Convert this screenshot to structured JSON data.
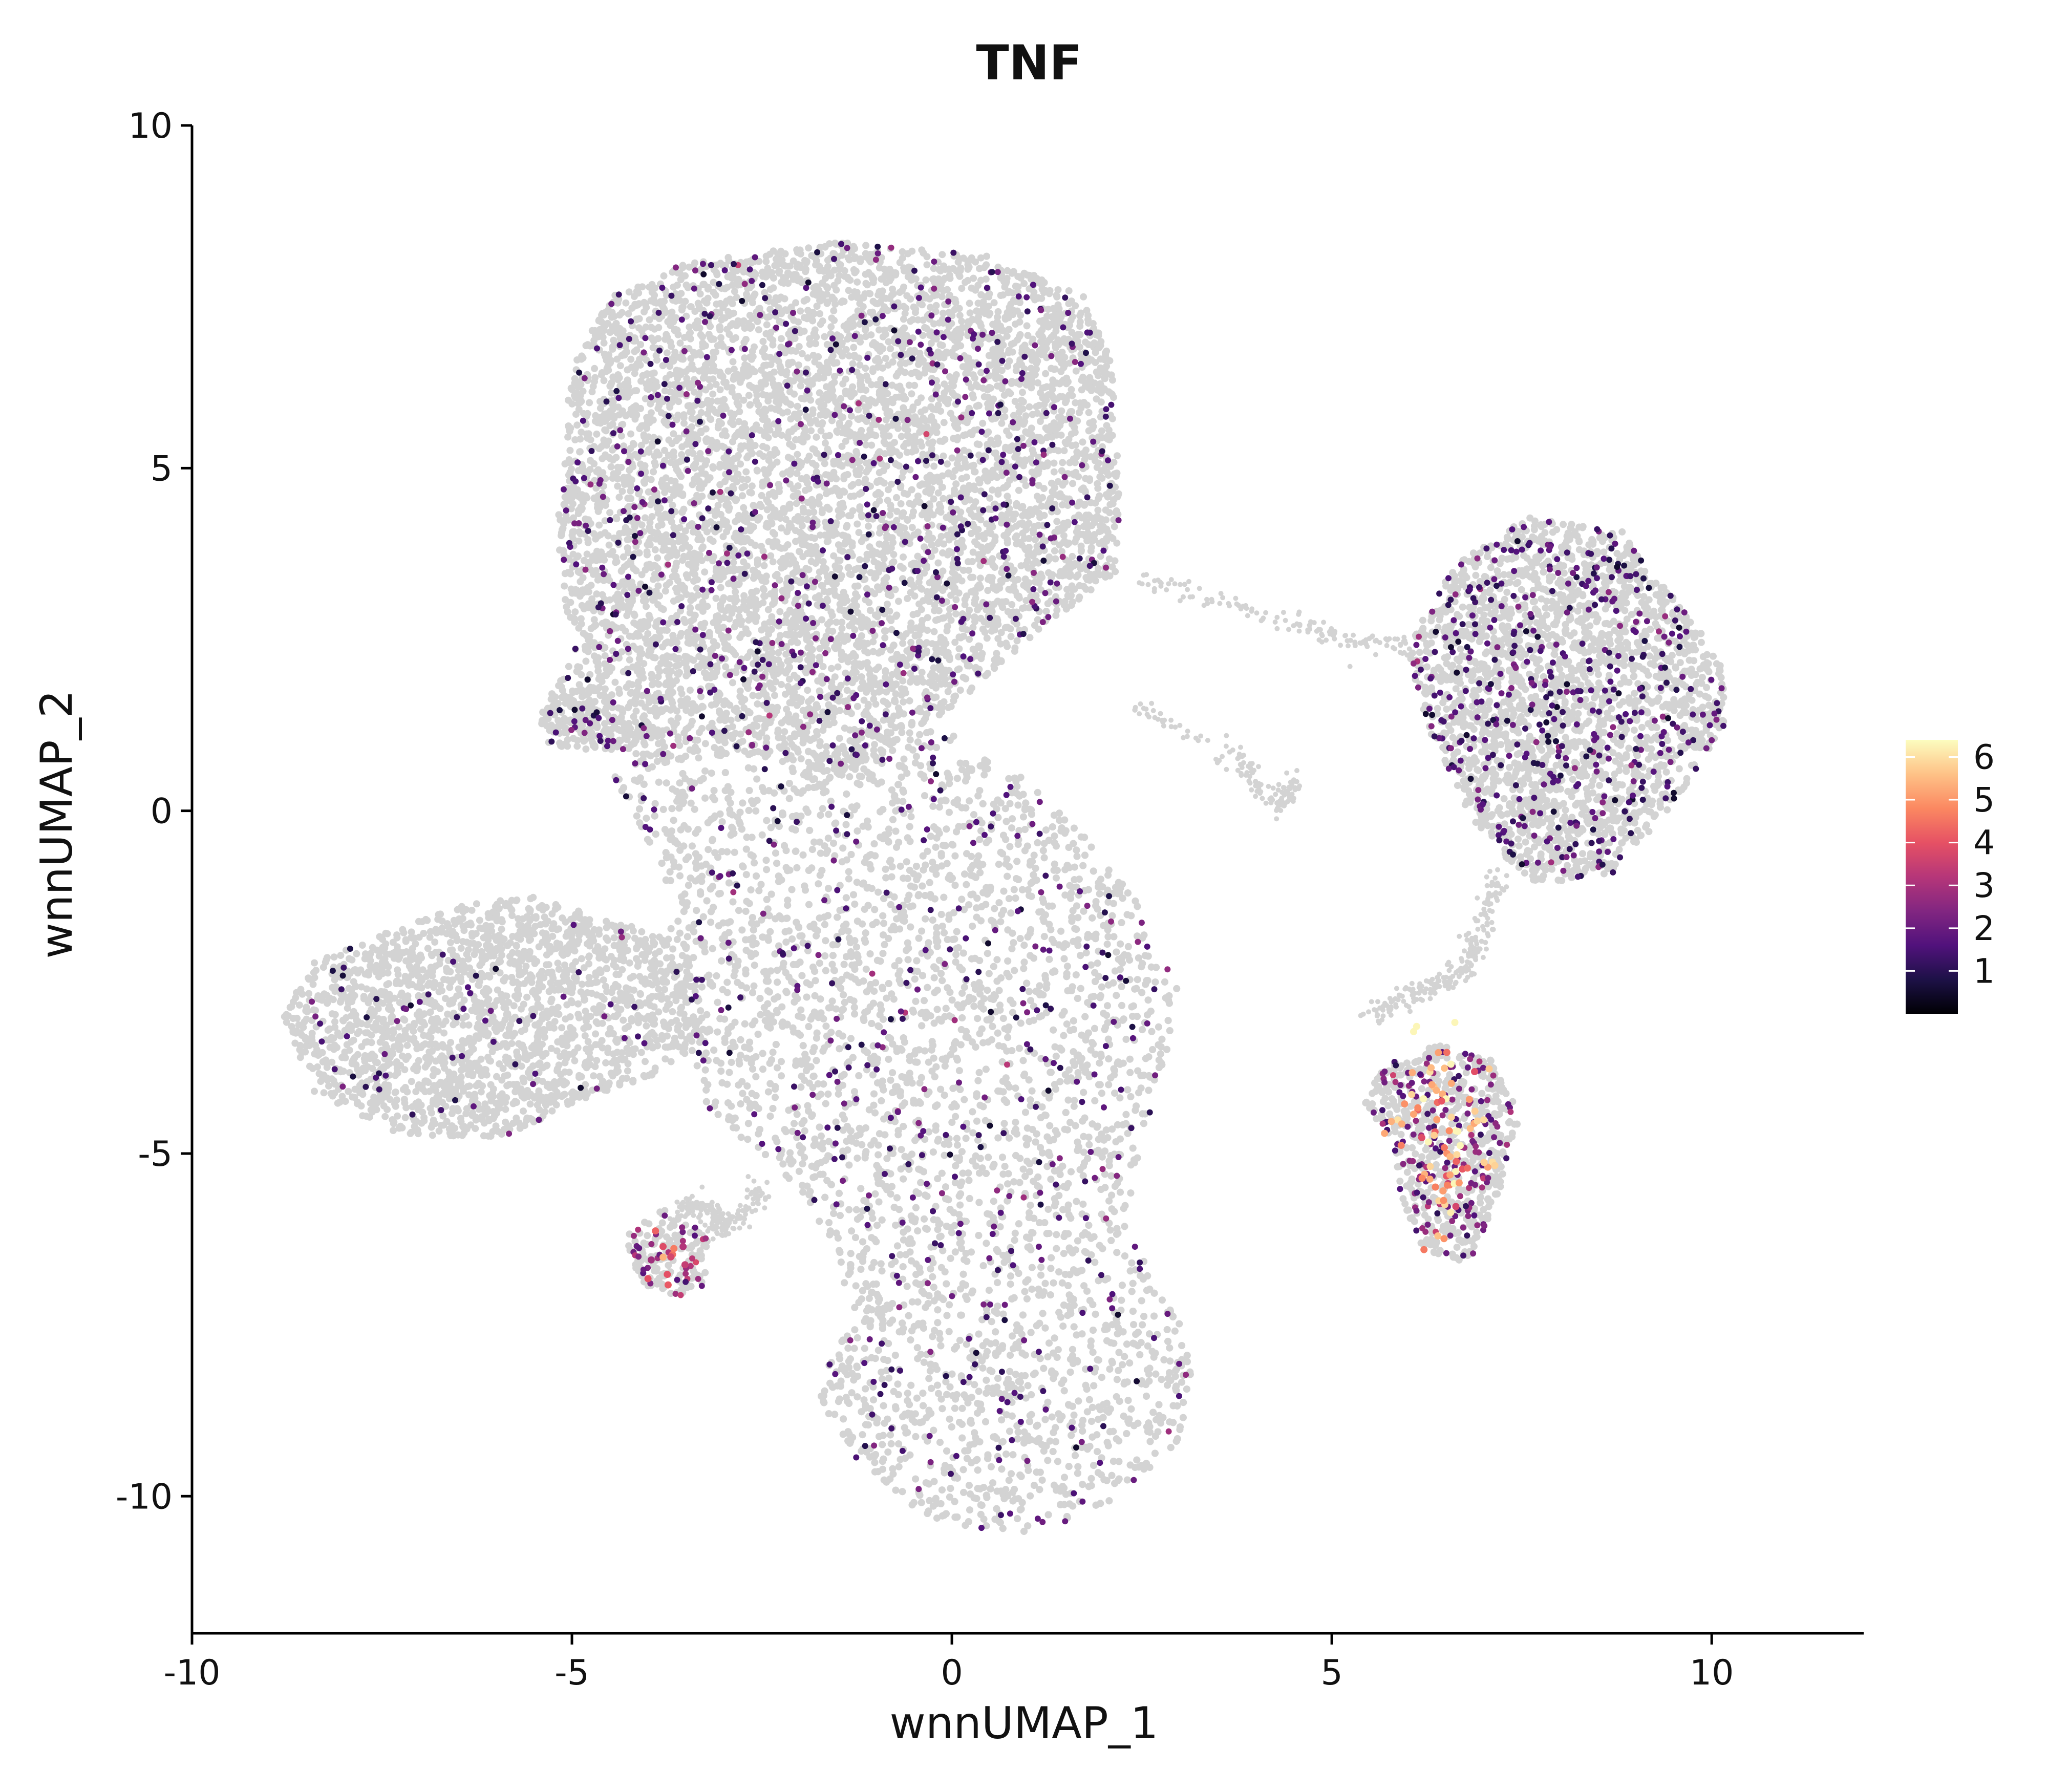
{
  "chart_data": {
    "type": "scatter",
    "title": "TNF",
    "xlabel": "wnnUMAP_1",
    "ylabel": "wnnUMAP_2",
    "xlim": [
      -10,
      12
    ],
    "ylim": [
      -12,
      10
    ],
    "x_ticks": [
      -10,
      -5,
      0,
      5,
      10
    ],
    "y_ticks": [
      10,
      5,
      0,
      -5,
      -10
    ],
    "grid": false,
    "background_color": "#d3d3d3",
    "colorbar": {
      "min": 0,
      "max": 6.4,
      "ticks": [
        1,
        2,
        3,
        4,
        5,
        6
      ],
      "colors": [
        "#000004",
        "#1d1147",
        "#51127c",
        "#822681",
        "#b63679",
        "#e65164",
        "#fb8861",
        "#fec287",
        "#fcfdbf"
      ],
      "placement": "right"
    },
    "regions": [
      {
        "name": "top-cluster",
        "polygon": [
          [
            -5,
            6.5
          ],
          [
            -4.5,
            7.5
          ],
          [
            -3.5,
            8
          ],
          [
            -1.5,
            8.3
          ],
          [
            0.5,
            8.1
          ],
          [
            1.8,
            7.5
          ],
          [
            2.1,
            6.5
          ],
          [
            2.2,
            5
          ],
          [
            2.2,
            3.5
          ],
          [
            1,
            2.5
          ],
          [
            0,
            1.5
          ],
          [
            -1.5,
            0.5
          ],
          [
            -2.5,
            0.8
          ],
          [
            -3.2,
            0.8
          ],
          [
            -4,
            0.6
          ],
          [
            -5.5,
            1.3
          ],
          [
            -5,
            2.2
          ],
          [
            -5.2,
            4
          ],
          [
            -5.1,
            5.5
          ]
        ]
      },
      {
        "name": "left-cluster",
        "polygon": [
          [
            -8.8,
            -3
          ],
          [
            -8.4,
            -2.2
          ],
          [
            -7.5,
            -1.8
          ],
          [
            -6.5,
            -1.4
          ],
          [
            -5.5,
            -1.2
          ],
          [
            -4.5,
            -1.6
          ],
          [
            -3.5,
            -1.9
          ],
          [
            -3.2,
            -3.3
          ],
          [
            -3.8,
            -3.8
          ],
          [
            -4.8,
            -4.2
          ],
          [
            -6,
            -4.8
          ],
          [
            -7.3,
            -4.7
          ],
          [
            -8.4,
            -4.1
          ]
        ]
      },
      {
        "name": "center-body",
        "polygon": [
          [
            -4.5,
            0.5
          ],
          [
            -3,
            0.6
          ],
          [
            -1.5,
            0.8
          ],
          [
            0,
            1.3
          ],
          [
            1.5,
            0
          ],
          [
            2.5,
            -1.4
          ],
          [
            3,
            -2.6
          ],
          [
            2.7,
            -4.2
          ],
          [
            2.3,
            -5.8
          ],
          [
            2.6,
            -6.8
          ],
          [
            3.2,
            -7.8
          ],
          [
            3,
            -9.2
          ],
          [
            2,
            -10.2
          ],
          [
            0.9,
            -10.6
          ],
          [
            -0.4,
            -10.3
          ],
          [
            -1.4,
            -9.3
          ],
          [
            -1.8,
            -8.4
          ],
          [
            -1.3,
            -7.4
          ],
          [
            -1.6,
            -6.2
          ],
          [
            -2.3,
            -5.2
          ],
          [
            -3.2,
            -4.4
          ],
          [
            -3.6,
            -2.8
          ],
          [
            -3.8,
            -0.8
          ]
        ]
      },
      {
        "name": "right-top-cluster",
        "polygon": [
          [
            6,
            2.4
          ],
          [
            6.6,
            3.6
          ],
          [
            7.6,
            4.3
          ],
          [
            8.8,
            4.1
          ],
          [
            9.5,
            3.1
          ],
          [
            10.1,
            2.3
          ],
          [
            10.2,
            1.3
          ],
          [
            9.5,
            0.1
          ],
          [
            8.7,
            -0.9
          ],
          [
            7.6,
            -1.1
          ],
          [
            6.9,
            -0.2
          ],
          [
            6.5,
            0.6
          ],
          [
            6.2,
            1.4
          ]
        ]
      },
      {
        "name": "right-bottom-cluster",
        "polygon": [
          [
            5.7,
            -3.7
          ],
          [
            6.4,
            -3.4
          ],
          [
            7.1,
            -3.6
          ],
          [
            7.5,
            -4.4
          ],
          [
            7.3,
            -5.2
          ],
          [
            7.1,
            -5.9
          ],
          [
            6.8,
            -6.6
          ],
          [
            6.2,
            -6.4
          ],
          [
            5.9,
            -5.6
          ],
          [
            5.8,
            -4.8
          ],
          [
            5.4,
            -4.3
          ]
        ]
      },
      {
        "name": "small-left-cluster",
        "polygon": [
          [
            -4.3,
            -6.2
          ],
          [
            -3.8,
            -5.8
          ],
          [
            -3.2,
            -6.2
          ],
          [
            -3.2,
            -6.9
          ],
          [
            -3.6,
            -7.1
          ],
          [
            -4.1,
            -6.9
          ]
        ]
      },
      {
        "name": "left-nub",
        "polygon": [
          [
            -5.4,
            1.2
          ],
          [
            -4.8,
            1.6
          ],
          [
            -3.8,
            1.1
          ],
          [
            -4.4,
            0.9
          ],
          [
            -5.3,
            0.9
          ]
        ]
      }
    ],
    "bridges": [
      {
        "name": "bridge-top",
        "points": [
          [
            2.5,
            3.4
          ],
          [
            4,
            2.9
          ],
          [
            5.2,
            2.5
          ],
          [
            6.1,
            2.4
          ]
        ]
      },
      {
        "name": "bridge-middle",
        "points": [
          [
            2.5,
            1.5
          ],
          [
            3.8,
            0.7
          ],
          [
            4.3,
            0.1
          ],
          [
            4.5,
            0.4
          ]
        ]
      },
      {
        "name": "bridge-lower",
        "points": [
          [
            7.2,
            -0.9
          ],
          [
            7,
            -1.6
          ],
          [
            6.8,
            -2.2
          ],
          [
            6.5,
            -2.5
          ],
          [
            6,
            -2.7
          ],
          [
            5.5,
            -3
          ]
        ]
      },
      {
        "name": "bridge-left",
        "points": [
          [
            -3.6,
            -5.9
          ],
          [
            -3.3,
            -5.7
          ],
          [
            -3,
            -6
          ]
        ]
      },
      {
        "name": "bridge-small",
        "points": [
          [
            -2.5,
            -5.5
          ],
          [
            -2.8,
            -6
          ],
          [
            -3.2,
            -6.1
          ]
        ]
      }
    ],
    "hotspots": [
      {
        "name": "hotspot-right-bottom",
        "center": [
          6.4,
          -4.6
        ],
        "spread": [
          0.35,
          0.6
        ],
        "level": 5.5,
        "count": 60
      },
      {
        "name": "hotspot-right-bottom-stripe",
        "center": [
          6.5,
          -5.5
        ],
        "spread": [
          0.15,
          0.35
        ],
        "level": 5.2,
        "count": 20
      },
      {
        "name": "hotspot-small-left",
        "center": [
          -3.7,
          -6.6
        ],
        "spread": [
          0.15,
          0.15
        ],
        "level": 4.2,
        "count": 12
      }
    ],
    "expression": [
      {
        "region": "top-cluster",
        "level": 1.6,
        "fraction": 0.25
      },
      {
        "region": "left-cluster",
        "level": 1.4,
        "fraction": 0.1
      },
      {
        "region": "center-body",
        "level": 1.6,
        "fraction": 0.12
      },
      {
        "region": "right-top-cluster",
        "level": 1.5,
        "fraction": 0.6
      },
      {
        "region": "right-bottom-cluster",
        "level": 2.2,
        "fraction": 0.85
      },
      {
        "region": "small-left-cluster",
        "level": 2.6,
        "fraction": 0.8
      },
      {
        "region": "left-nub",
        "level": 1.5,
        "fraction": 0.5
      }
    ]
  }
}
